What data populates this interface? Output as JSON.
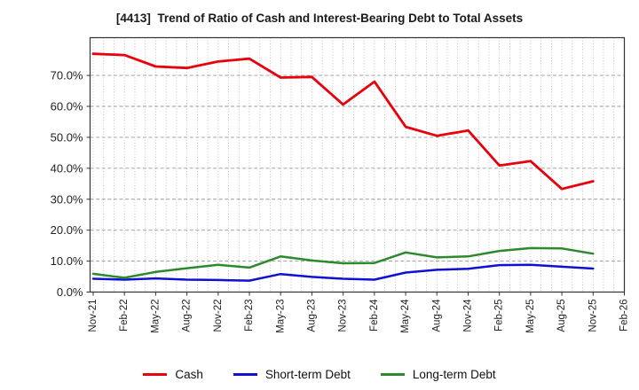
{
  "chart_data": {
    "type": "line",
    "title": "[4413]  Trend of Ratio of Cash and Interest-Bearing Debt to Total Assets",
    "categories": [
      "Nov-21",
      "Feb-22",
      "May-22",
      "Aug-22",
      "Nov-22",
      "Feb-23",
      "May-23",
      "Aug-23",
      "Nov-23",
      "Feb-24",
      "May-24",
      "Aug-24",
      "Nov-24",
      "Feb-25",
      "May-25",
      "Aug-25",
      "Nov-25",
      "Feb-26"
    ],
    "series": [
      {
        "name": "Cash",
        "color": "#e8000d",
        "values": [
          77.0,
          76.6,
          72.9,
          72.4,
          74.5,
          75.4,
          69.3,
          69.5,
          60.6,
          68.0,
          53.4,
          50.5,
          52.2,
          40.9,
          42.3,
          33.3,
          35.8
        ]
      },
      {
        "name": "Short-term Debt",
        "color": "#1010d0",
        "values": [
          4.3,
          4.0,
          4.4,
          4.0,
          3.9,
          3.7,
          5.8,
          4.9,
          4.3,
          4.0,
          6.3,
          7.2,
          7.5,
          8.7,
          8.8,
          8.2,
          7.6
        ]
      },
      {
        "name": "Long-term Debt",
        "color": "#2b8a2b",
        "values": [
          5.9,
          4.6,
          6.5,
          7.7,
          8.8,
          7.9,
          11.5,
          10.2,
          9.3,
          9.4,
          12.8,
          11.2,
          11.5,
          13.3,
          14.2,
          14.1,
          12.4
        ]
      }
    ],
    "ylim": [
      0,
      82.2
    ],
    "yticks": [
      0,
      10,
      20,
      30,
      40,
      50,
      60,
      70
    ],
    "ytick_labels": [
      "0.0%",
      "10.0%",
      "20.0%",
      "30.0%",
      "40.0%",
      "50.0%",
      "60.0%",
      "70.0%"
    ],
    "xlabel": "",
    "ylabel": "",
    "grid": {
      "horizontal": "dashed",
      "vertical": "dotted-monthly",
      "minor_per_interval": 3
    },
    "legend_position": "bottom"
  },
  "style": {
    "grid_v_color": "#b3b3b3",
    "grid_h_color": "#999999",
    "border_color": "#333333",
    "tick_text_color": "#222222",
    "title_color": "#1a1a1a"
  }
}
